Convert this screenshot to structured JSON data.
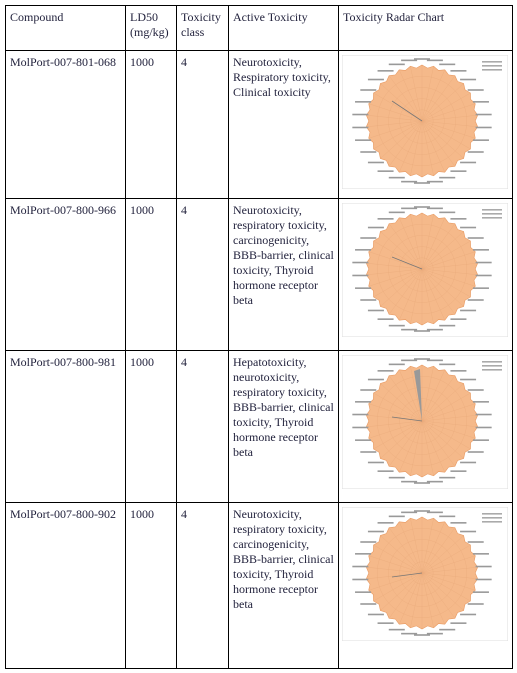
{
  "table": {
    "header": [
      "Compound",
      "LD50 (mg/kg)",
      "Toxicity class",
      "Active Toxicity",
      "Toxicity Radar Chart"
    ],
    "rows": [
      [
        "MolPort-007-801-068",
        "1000",
        "4",
        "Neurotoxicity, Respiratory toxicity, Clinical toxicity"
      ],
      [
        "MolPort-007-800-966",
        "1000",
        "4",
        "Neurotoxicity, respiratory toxicity, carcinogenicity, BBB-barrier, clinical toxicity, Thyroid hormone receptor beta"
      ],
      [
        "MolPort-007-800-981",
        "1000",
        "4",
        "Hepatotoxicity, neurotoxicity, respiratory toxicity, BBB-barrier, clinical toxicity, Thyroid hormone receptor beta"
      ],
      [
        "MolPort-007-800-902",
        "1000",
        "4",
        "Neurotoxicity, respiratory toxicity, carcinogenicity, BBB-barrier, clinical toxicity, Thyroid hormone receptor beta"
      ]
    ]
  }
}
